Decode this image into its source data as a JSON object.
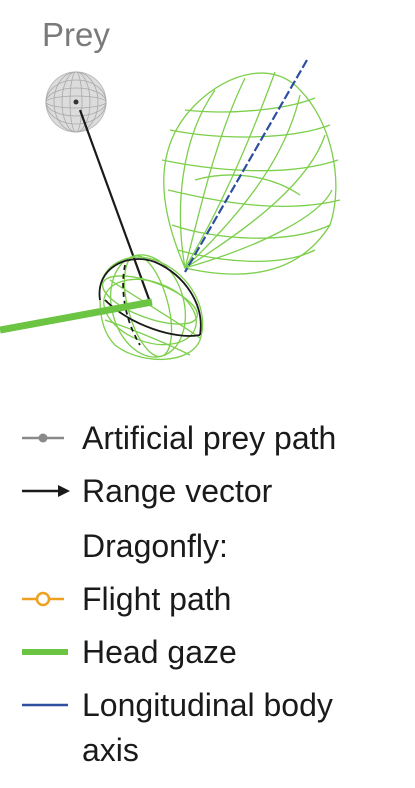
{
  "prey_label": "Prey",
  "colors": {
    "dragonfly_mesh": "#7ccf4b",
    "head_mesh": "#7ccf4b",
    "head_gaze": "#6cc443",
    "body_axis": "#2e4fa0",
    "range_vector": "#1a1a1a",
    "prey_sphere_fill": "#d9d9d9",
    "prey_path": "#888888",
    "flight_path": "#f0a020"
  },
  "legend": [
    {
      "label": "Artificial prey path",
      "symbol": "gray-dot-line-icon"
    },
    {
      "label": "Range vector",
      "symbol": "black-arrow-icon"
    },
    {
      "label": "Dragonfly:",
      "symbol": "none"
    },
    {
      "label": "Flight path",
      "symbol": "orange-circle-line-icon"
    },
    {
      "label": "Head gaze",
      "symbol": "green-thick-line-icon"
    },
    {
      "label": "Longitudinal body",
      "symbol": "blue-line-icon"
    },
    {
      "label": "axis",
      "symbol": "none"
    }
  ]
}
